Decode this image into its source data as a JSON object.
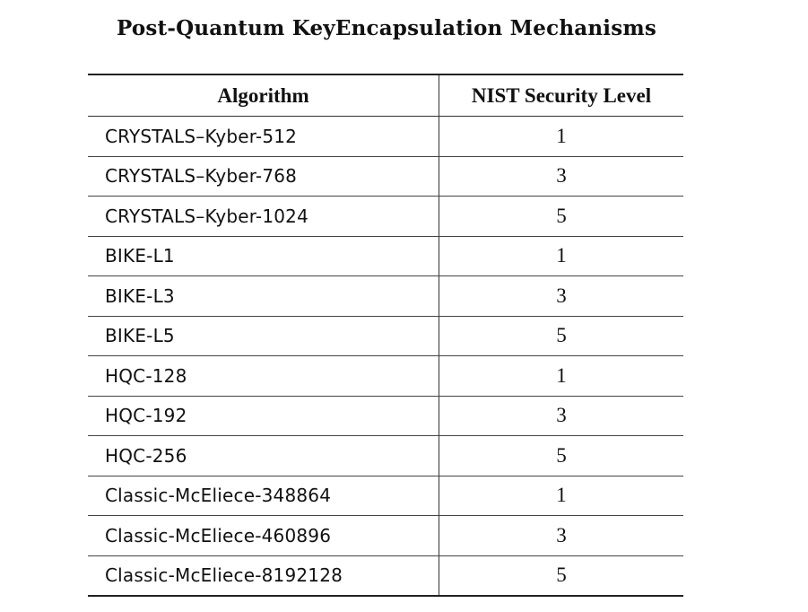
{
  "title": "Post-Quantum KeyEncapsulation Mechanisms",
  "table": {
    "headers": [
      "Algorithm",
      "NIST Security Level"
    ],
    "rows": [
      [
        "CRYSTALS–Kyber-512",
        "1"
      ],
      [
        "CRYSTALS–Kyber-768",
        "3"
      ],
      [
        "CRYSTALS–Kyber-1024",
        "5"
      ],
      [
        "BIKE-L1",
        "1"
      ],
      [
        "BIKE-L3",
        "3"
      ],
      [
        "BIKE-L5",
        "5"
      ],
      [
        "HQC-128",
        "1"
      ],
      [
        "HQC-192",
        "3"
      ],
      [
        "HQC-256",
        "5"
      ],
      [
        "Classic-McEliece-348864",
        "1"
      ],
      [
        "Classic-McEliece-460896",
        "3"
      ],
      [
        "Classic-McEliece-8192128",
        "5"
      ]
    ]
  }
}
